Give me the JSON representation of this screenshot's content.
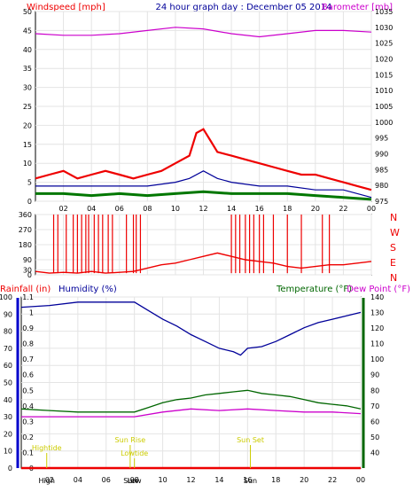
{
  "colors": {
    "wind": "#ee0000",
    "gust": "#ee0000",
    "avg": "#000099",
    "green": "#007700",
    "baro": "#cc00cc",
    "humidity": "#000099",
    "temp": "#006600",
    "dew": "#cc00cc",
    "rain": "#ee0000",
    "sun": "#cccc00"
  },
  "header": {
    "wind_label": "Windspeed [mph]",
    "title": "24 hour graph day : December 05 2014",
    "baro_label": "Barometer [mb]"
  },
  "bottom_header": {
    "rain_label": "Rainfall (in)",
    "humidity_label": "Humidity (%)",
    "temp_label": "Temperature (°F)",
    "dew_label": "Dew Point (°F)"
  },
  "x_ticks": [
    "02",
    "04",
    "06",
    "08",
    "10",
    "12",
    "14",
    "16",
    "18",
    "20",
    "22",
    "00"
  ],
  "compass": [
    "N",
    "W",
    "S",
    "E",
    "N"
  ],
  "events": [
    {
      "label": "Hightide",
      "hour": 1.8
    },
    {
      "label": "Lowtide",
      "hour": 8.0
    },
    {
      "label": "Sun Rise",
      "hour": 7.7
    },
    {
      "label": "Sun Set",
      "hour": 16.2
    }
  ],
  "chart_data": [
    {
      "type": "line",
      "name": "wind-barometer",
      "x_range": [
        0,
        24
      ],
      "ylim": [
        0,
        50
      ],
      "y2lim": [
        975,
        1035
      ],
      "yticks": [
        0,
        5,
        10,
        15,
        20,
        25,
        30,
        35,
        40,
        45,
        50
      ],
      "y2ticks": [
        975,
        980,
        985,
        990,
        995,
        1000,
        1005,
        1010,
        1015,
        1020,
        1025,
        1030,
        1035
      ],
      "series": [
        {
          "key": "gust",
          "x": [
            0,
            1,
            2,
            3,
            4,
            5,
            6,
            7,
            8,
            9,
            10,
            11,
            11.5,
            12,
            12.5,
            13,
            14,
            15,
            16,
            17,
            18,
            19,
            20,
            21,
            22,
            23,
            24
          ],
          "y": [
            6,
            7,
            8,
            6,
            7,
            8,
            7,
            6,
            7,
            8,
            10,
            12,
            18,
            19,
            16,
            13,
            12,
            11,
            10,
            9,
            8,
            7,
            7,
            6,
            5,
            4,
            3
          ]
        },
        {
          "key": "avg",
          "x": [
            0,
            2,
            4,
            6,
            8,
            10,
            11,
            12,
            13,
            14,
            16,
            18,
            20,
            22,
            23,
            24
          ],
          "y": [
            4,
            4,
            4,
            4,
            4,
            5,
            6,
            8,
            6,
            5,
            4,
            4,
            3,
            3,
            2,
            1
          ]
        },
        {
          "key": "green",
          "x": [
            0,
            2,
            4,
            6,
            8,
            10,
            12,
            14,
            16,
            18,
            20,
            22,
            24
          ],
          "y": [
            2,
            2,
            1.5,
            2,
            1.5,
            2,
            2.5,
            2,
            2,
            2,
            1.5,
            1,
            0.5
          ]
        },
        {
          "key": "baro",
          "axis": "y2",
          "x": [
            0,
            2,
            4,
            6,
            8,
            10,
            12,
            14,
            16,
            18,
            20,
            22,
            24
          ],
          "y": [
            1028,
            1027.5,
            1027.5,
            1028,
            1029,
            1030,
            1029.5,
            1028,
            1027,
            1028,
            1029,
            1029,
            1028.5
          ]
        }
      ]
    },
    {
      "type": "scatter",
      "name": "wind-direction",
      "x_range": [
        0,
        24
      ],
      "ylim": [
        0,
        360
      ],
      "yticks": [
        0,
        30,
        90,
        180,
        270,
        360
      ],
      "series": [
        {
          "key": "direction",
          "x": [
            0,
            1,
            2,
            3,
            4,
            5,
            6,
            7,
            8,
            9,
            10,
            11,
            12,
            13,
            14,
            15,
            16,
            17,
            18,
            19,
            20,
            21,
            22,
            23,
            24
          ],
          "y": [
            20,
            10,
            15,
            10,
            20,
            10,
            15,
            20,
            40,
            60,
            70,
            90,
            110,
            130,
            110,
            90,
            80,
            70,
            50,
            40,
            50,
            60,
            60,
            70,
            80
          ]
        }
      ],
      "spike_hours": [
        1.3,
        1.6,
        2.2,
        2.7,
        3.0,
        3.3,
        3.6,
        3.8,
        4.2,
        4.5,
        4.8,
        5.2,
        5.5,
        6.5,
        7.0,
        7.2,
        7.5,
        14.0,
        14.3,
        14.6,
        15.0,
        15.3,
        15.6,
        16.0,
        16.3,
        17.0,
        18.0,
        19.0,
        20.5,
        21.0
      ]
    },
    {
      "type": "line",
      "name": "temperature-humidity-rain",
      "x_range": [
        0,
        24
      ],
      "humidity_ylim": [
        0,
        100
      ],
      "humidity_ticks": [
        0,
        10,
        20,
        30,
        40,
        50,
        60,
        70,
        80,
        90,
        100
      ],
      "rain_ylim": [
        0,
        1.1
      ],
      "rain_ticks": [
        0,
        0.1,
        0.2,
        0.3,
        0.4,
        0.5,
        0.6,
        0.7,
        0.8,
        0.9,
        1,
        1.1
      ],
      "temp_ylim": [
        30,
        140
      ],
      "temp_ticks": [
        40,
        50,
        60,
        70,
        80,
        90,
        100,
        110,
        120,
        130,
        140
      ],
      "series": [
        {
          "key": "humidity",
          "axis": "humidity",
          "x": [
            0,
            2,
            4,
            6,
            7,
            8,
            9,
            10,
            11,
            12,
            13,
            14,
            15,
            15.5,
            16,
            17,
            18,
            19,
            20,
            21,
            22,
            23,
            24
          ],
          "y": [
            94,
            95,
            97,
            97,
            97,
            97,
            92,
            87,
            83,
            78,
            74,
            70,
            68,
            66,
            70,
            71,
            74,
            78,
            82,
            85,
            87,
            89,
            91
          ]
        },
        {
          "key": "temp",
          "axis": "temp",
          "x": [
            0,
            2,
            4,
            6,
            7,
            8,
            9,
            10,
            11,
            12,
            13,
            14,
            15,
            16,
            17,
            18,
            19,
            20,
            21,
            22,
            23,
            24
          ],
          "y": [
            68,
            67,
            66,
            66,
            66,
            66,
            69,
            72,
            74,
            75,
            77,
            78,
            79,
            80,
            78,
            77,
            76,
            74,
            72,
            71,
            70,
            68
          ]
        },
        {
          "key": "dew",
          "axis": "temp",
          "x": [
            0,
            2,
            4,
            6,
            7,
            8,
            10,
            12,
            14,
            16,
            18,
            20,
            22,
            24
          ],
          "y": [
            63,
            63,
            63,
            63,
            63,
            63,
            66,
            68,
            67,
            68,
            67,
            66,
            66,
            65
          ]
        },
        {
          "key": "rain",
          "axis": "rain",
          "x": [
            0,
            24
          ],
          "y": [
            0,
            0
          ]
        }
      ]
    }
  ]
}
